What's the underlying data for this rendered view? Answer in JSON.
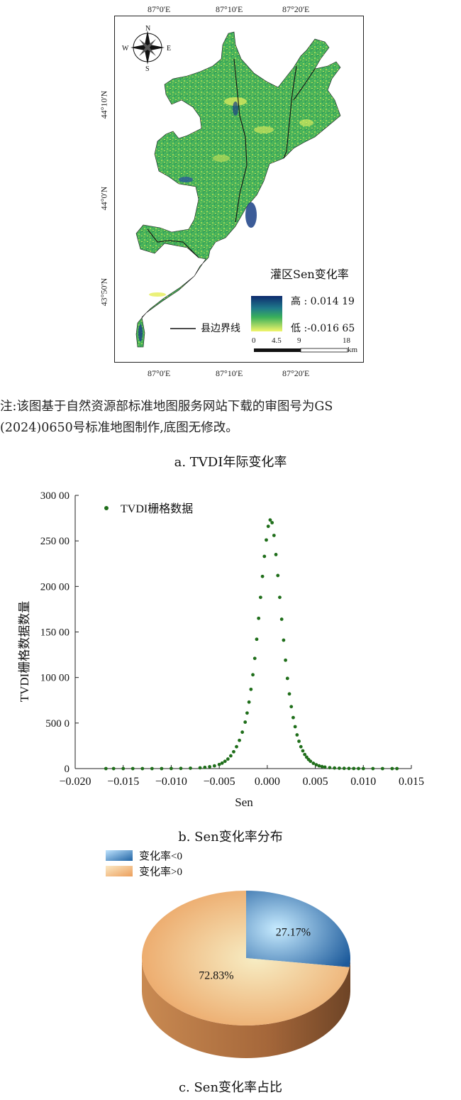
{
  "map": {
    "top_ticks": [
      "87°0'E",
      "87°10'E",
      "87°20'E"
    ],
    "bottom_ticks": [
      "87°0'E",
      "87°10'E",
      "87°20'E"
    ],
    "left_ticks": [
      "44°10'N",
      "44°0'N",
      "43°50'N"
    ],
    "compass": {
      "n": "N",
      "s": "S",
      "e": "E",
      "w": "W"
    },
    "legend_title": "灌区Sen变化率",
    "legend_high": "高 : 0.014 19",
    "legend_low": "低 :-0.016 65",
    "boundary_label": "县边界线",
    "scale_ticks": [
      "0",
      "4.5",
      "9",
      "18"
    ],
    "scale_unit": "km",
    "colors": {
      "high": "#0d2a6e",
      "mid": "#2aa35a",
      "low": "#f2f56a",
      "boundary": "#111111"
    }
  },
  "note": {
    "line1": "注:该图基于自然资源部标准地图服务网站下载的审图号为GS",
    "line2": "(2024)0650号标准地图制作,底图无修改。"
  },
  "captions": {
    "a": "a. TVDI年际变化率",
    "b": "b. Sen变化率分布",
    "c": "c. Sen变化率占比"
  },
  "chart_data": [
    {
      "type": "scatter",
      "legend": [
        "TVDI栅格数据"
      ],
      "xlabel": "Sen",
      "ylabel": "TVDI栅格数据数量",
      "xlim": [
        -0.02,
        0.015
      ],
      "ylim": [
        0,
        30000
      ],
      "x_tick_labels": [
        "−0.020",
        "−0.015",
        "−0.010",
        "−0.005",
        "0.000",
        "0.005",
        "0.010",
        "0.015"
      ],
      "y_tick_labels": [
        "0",
        "500 0",
        "100 00",
        "150 00",
        "200 00",
        "250 00",
        "300 00"
      ],
      "x_ticks": [
        -0.02,
        -0.015,
        -0.01,
        -0.005,
        0,
        0.005,
        0.01,
        0.015
      ],
      "y_ticks": [
        0,
        5000,
        10000,
        15000,
        20000,
        25000,
        30000
      ],
      "series": [
        {
          "name": "TVDI栅格数据",
          "color": "#1f6e1a",
          "x": [
            -0.0168,
            -0.016,
            -0.015,
            -0.014,
            -0.013,
            -0.012,
            -0.011,
            -0.01,
            -0.009,
            -0.008,
            -0.007,
            -0.0065,
            -0.006,
            -0.0055,
            -0.005,
            -0.0047,
            -0.0044,
            -0.0041,
            -0.0038,
            -0.0035,
            -0.0032,
            -0.0029,
            -0.0026,
            -0.0023,
            -0.0021,
            -0.0019,
            -0.0017,
            -0.0015,
            -0.0013,
            -0.0011,
            -0.0009,
            -0.0007,
            -0.0005,
            -0.0003,
            -0.0001,
            0.0001,
            0.0003,
            0.0005,
            0.0007,
            0.0009,
            0.0011,
            0.0013,
            0.0015,
            0.0017,
            0.0019,
            0.0021,
            0.0023,
            0.0025,
            0.0027,
            0.0029,
            0.0031,
            0.0033,
            0.0035,
            0.0037,
            0.0039,
            0.0041,
            0.0043,
            0.0045,
            0.0048,
            0.0051,
            0.0054,
            0.0057,
            0.006,
            0.0065,
            0.007,
            0.0075,
            0.008,
            0.0085,
            0.009,
            0.0095,
            0.01,
            0.011,
            0.012,
            0.013,
            0.0135
          ],
          "y": [
            0,
            0,
            0,
            0,
            0,
            0,
            0,
            10,
            20,
            40,
            80,
            130,
            200,
            300,
            450,
            600,
            800,
            1050,
            1400,
            1850,
            2400,
            3100,
            4000,
            5100,
            6100,
            7300,
            8700,
            10300,
            12100,
            14200,
            16500,
            18800,
            21100,
            23300,
            25100,
            26600,
            27300,
            27000,
            25600,
            23500,
            21200,
            18800,
            16400,
            14100,
            11900,
            9900,
            8200,
            6800,
            5600,
            4600,
            3700,
            3000,
            2400,
            1950,
            1550,
            1250,
            1000,
            800,
            580,
            420,
            300,
            220,
            160,
            100,
            65,
            40,
            25,
            15,
            10,
            5,
            0,
            0,
            0,
            0,
            0
          ]
        }
      ]
    },
    {
      "type": "pie",
      "legend": [
        "变化率<0",
        "变化率>0"
      ],
      "labels": [
        "变化率<0",
        "变化率>0"
      ],
      "values": [
        27.17,
        72.83
      ],
      "value_labels": [
        "27.17%",
        "72.83%"
      ],
      "colors": [
        "#2a6fae",
        "#e9a869"
      ]
    }
  ]
}
